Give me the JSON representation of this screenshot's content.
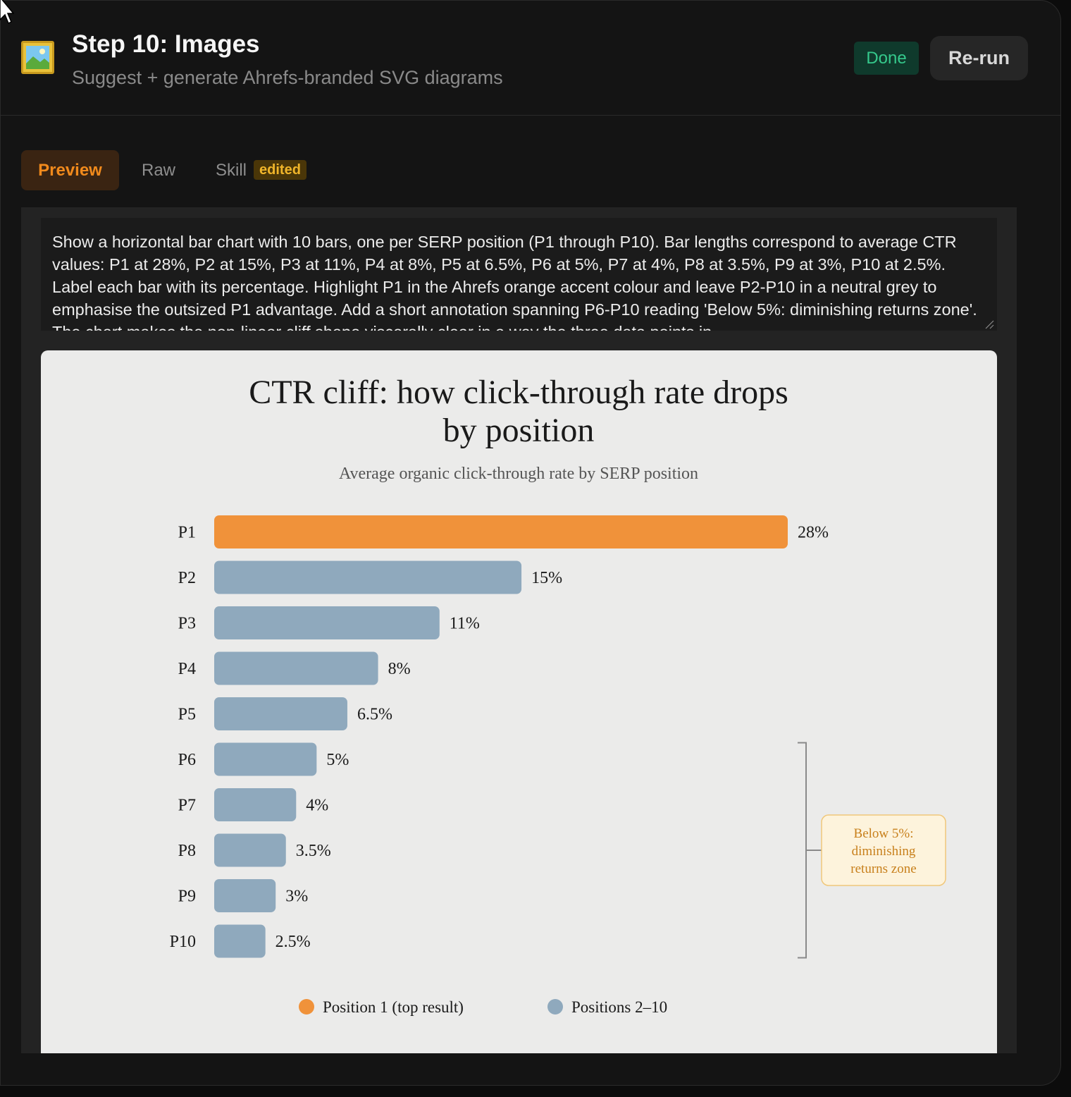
{
  "header": {
    "icon": "framed-picture-icon",
    "title": "Step 10: Images",
    "subtitle": "Suggest + generate Ahrefs-branded SVG diagrams",
    "status": "Done",
    "rerun_label": "Re-run"
  },
  "tabs": [
    {
      "label": "Preview",
      "active": true
    },
    {
      "label": "Raw",
      "active": false
    },
    {
      "label": "Skill",
      "active": false,
      "badge": "edited"
    }
  ],
  "prompt_text": "Show a horizontal bar chart with 10 bars, one per SERP position (P1 through P10). Bar lengths correspond to average CTR values: P1 at 28%, P2 at 15%, P3 at 11%, P4 at 8%, P5 at 6.5%, P6 at 5%, P7 at 4%, P8 at 3.5%, P9 at 3%, P10 at 2.5%. Label each bar with its percentage. Highlight P1 in the Ahrefs orange accent colour and leave P2-P10 in a neutral grey to emphasise the outsized P1 advantage. Add a short annotation spanning P6-P10 reading 'Below 5%: diminishing returns zone'. The chart makes the non-linear cliff shape viscerally clear in a way the three data points in",
  "colors": {
    "accent": "#f0923a",
    "neutral": "#8fa9bd",
    "done_text": "#35c98c",
    "annotation_text": "#c8801c"
  },
  "chart_data": {
    "type": "bar",
    "orientation": "horizontal",
    "title_lines": [
      "CTR cliff: how click-through rate drops",
      "by position"
    ],
    "subtitle": "Average organic click-through rate by SERP position",
    "categories": [
      "P1",
      "P2",
      "P3",
      "P4",
      "P5",
      "P6",
      "P7",
      "P8",
      "P9",
      "P10"
    ],
    "values": [
      28,
      15,
      11,
      8,
      6.5,
      5,
      4,
      3.5,
      3,
      2.5
    ],
    "value_labels": [
      "28%",
      "15%",
      "11%",
      "8%",
      "6.5%",
      "5%",
      "4%",
      "3.5%",
      "3%",
      "2.5%"
    ],
    "xlim": [
      0,
      28
    ],
    "highlight_index": 0,
    "annotation": {
      "lines": [
        "Below 5%:",
        "diminishing",
        "returns zone"
      ],
      "from": "P6",
      "to": "P10"
    },
    "legend": [
      {
        "label": "Position 1 (top result)",
        "color": "#f0923a"
      },
      {
        "label": "Positions 2–10",
        "color": "#8fa9bd"
      }
    ]
  }
}
